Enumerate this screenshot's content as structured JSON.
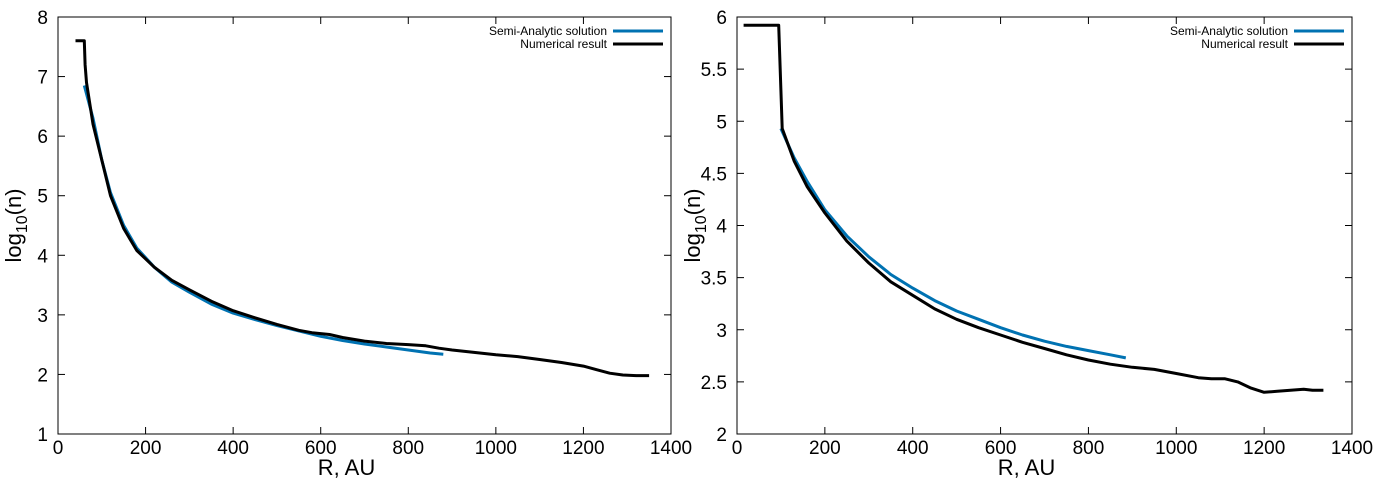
{
  "chart_data": [
    {
      "type": "line",
      "title": "",
      "xlabel": "R, AU",
      "ylabel": "log10(n)",
      "ylabel_parts": {
        "base": "log",
        "sub": "10",
        "tail": "(n)"
      },
      "xlim": [
        0,
        1400
      ],
      "ylim": [
        1,
        8
      ],
      "xticks": [
        0,
        200,
        400,
        600,
        800,
        1000,
        1200,
        1400
      ],
      "yticks": [
        1,
        2,
        3,
        4,
        5,
        6,
        7,
        8
      ],
      "ytick_labels": [
        "1",
        "2",
        "3",
        "4",
        "5",
        "6",
        "7",
        "8"
      ],
      "grid": false,
      "legend_position": "top-right",
      "series": [
        {
          "name": "Semi-Analytic solution",
          "color": "#0072b2",
          "x": [
            60,
            80,
            100,
            120,
            150,
            180,
            220,
            260,
            300,
            350,
            400,
            450,
            500,
            550,
            600,
            650,
            700,
            750,
            800,
            850,
            880
          ],
          "y": [
            6.85,
            6.3,
            5.6,
            5.05,
            4.5,
            4.12,
            3.8,
            3.55,
            3.38,
            3.18,
            3.03,
            2.92,
            2.82,
            2.73,
            2.64,
            2.57,
            2.51,
            2.46,
            2.41,
            2.36,
            2.34
          ]
        },
        {
          "name": "Numerical result",
          "color": "#000000",
          "x": [
            40,
            60,
            62,
            65,
            80,
            100,
            120,
            150,
            180,
            220,
            260,
            300,
            350,
            400,
            450,
            500,
            550,
            580,
            620,
            650,
            700,
            750,
            800,
            840,
            870,
            900,
            950,
            1000,
            1050,
            1100,
            1150,
            1200,
            1230,
            1260,
            1290,
            1320,
            1350
          ],
          "y": [
            7.6,
            7.6,
            7.2,
            6.9,
            6.2,
            5.6,
            5.0,
            4.45,
            4.08,
            3.8,
            3.58,
            3.42,
            3.23,
            3.07,
            2.95,
            2.84,
            2.74,
            2.7,
            2.67,
            2.62,
            2.56,
            2.52,
            2.5,
            2.48,
            2.44,
            2.41,
            2.37,
            2.33,
            2.3,
            2.25,
            2.2,
            2.14,
            2.08,
            2.02,
            1.99,
            1.98,
            1.98
          ]
        }
      ]
    },
    {
      "type": "line",
      "title": "",
      "xlabel": "R, AU",
      "ylabel": "log10(n)",
      "ylabel_parts": {
        "base": "log",
        "sub": "10",
        "tail": "(n)"
      },
      "xlim": [
        0,
        1400
      ],
      "ylim": [
        2,
        6
      ],
      "xticks": [
        0,
        200,
        400,
        600,
        800,
        1000,
        1200,
        1400
      ],
      "yticks": [
        2,
        2.5,
        3,
        3.5,
        4,
        4.5,
        5,
        5.5,
        6
      ],
      "ytick_labels": [
        "2",
        "2.5",
        "3",
        "3.5",
        "4",
        "4.5",
        "5",
        "5.5",
        "6"
      ],
      "grid": false,
      "legend_position": "top-right",
      "series": [
        {
          "name": "Semi-Analytic solution",
          "color": "#0072b2",
          "x": [
            100,
            130,
            160,
            200,
            250,
            300,
            350,
            400,
            450,
            500,
            550,
            600,
            650,
            700,
            750,
            800,
            850,
            885
          ],
          "y": [
            4.93,
            4.65,
            4.42,
            4.15,
            3.9,
            3.7,
            3.53,
            3.4,
            3.28,
            3.18,
            3.1,
            3.02,
            2.95,
            2.89,
            2.84,
            2.8,
            2.76,
            2.73
          ]
        },
        {
          "name": "Numerical result",
          "color": "#000000",
          "x": [
            15,
            95,
            100,
            103,
            130,
            160,
            200,
            250,
            300,
            350,
            400,
            450,
            500,
            550,
            600,
            650,
            700,
            750,
            800,
            850,
            900,
            950,
            1000,
            1050,
            1080,
            1110,
            1140,
            1170,
            1200,
            1230,
            1260,
            1290,
            1310,
            1335
          ],
          "y": [
            5.92,
            5.92,
            5.3,
            4.93,
            4.62,
            4.37,
            4.12,
            3.85,
            3.64,
            3.46,
            3.33,
            3.2,
            3.1,
            3.02,
            2.95,
            2.88,
            2.82,
            2.76,
            2.71,
            2.67,
            2.64,
            2.62,
            2.58,
            2.54,
            2.53,
            2.53,
            2.5,
            2.44,
            2.4,
            2.41,
            2.42,
            2.43,
            2.42,
            2.42
          ]
        }
      ]
    }
  ]
}
